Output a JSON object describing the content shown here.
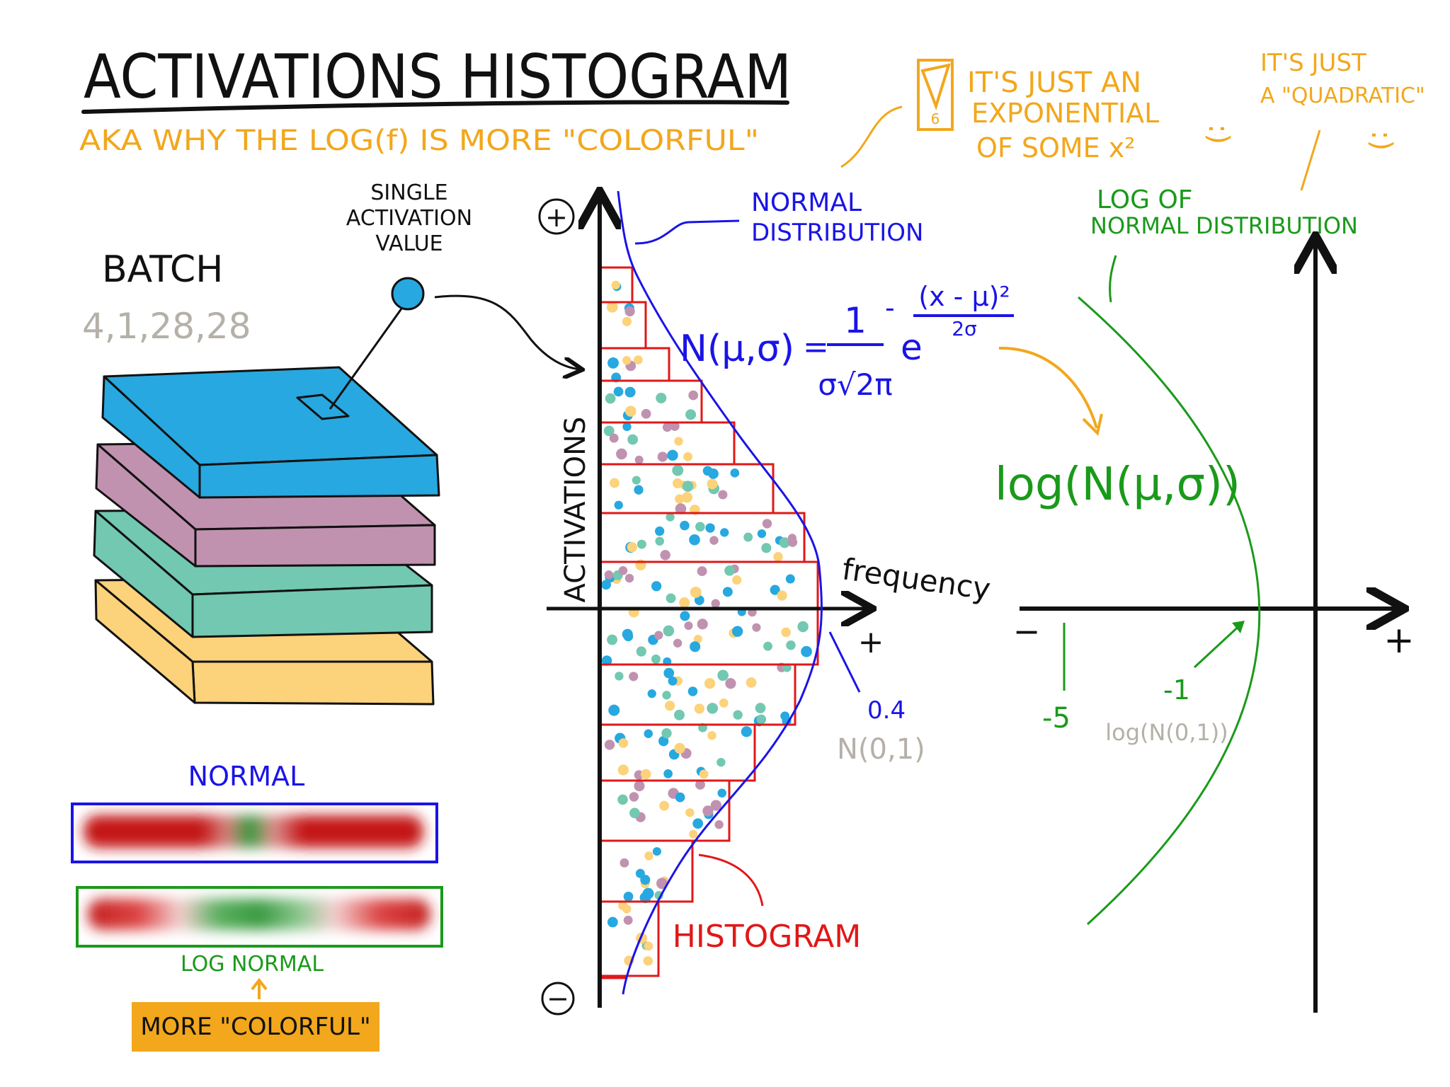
{
  "title": "ACTIVATIONS  HISTOGRAM",
  "subtitle": "AKA  WHY  THE  LOG(f)  IS  MORE  \"COLORFUL\"",
  "batch": {
    "label": "BATCH",
    "shape": "4,1,28,28",
    "layer_colors": [
      "#27a8e0",
      "#c092b0",
      "#72c8b0",
      "#fcd27a"
    ]
  },
  "single_activation": {
    "line1": "SINGLE",
    "line2": "ACTIVATION",
    "line3": "VALUE"
  },
  "histogram": {
    "y_axis_label": "ACTIVATIONS",
    "x_axis_label": "frequency",
    "plus_sign": "+",
    "minus_sign": "−",
    "x_plus": "+",
    "histogram_label": "HISTOGRAM",
    "normal_label_line1": "NORMAL",
    "normal_label_line2": "DISTRIBUTION",
    "peak_value": "0.4",
    "peak_dist": "N(0,1)"
  },
  "formula": {
    "lhs": "N(μ,σ)",
    "equals": "=",
    "numerator": "1",
    "denominator": "σ√2π",
    "base": "e",
    "exp_sign": "-",
    "exp_numerator": "(x - μ)²",
    "exp_denominator": "2σ"
  },
  "log_formula": "log(N(μ,σ))",
  "log_plot": {
    "title_line1": "LOG  OF",
    "title_line2": "NORMAL  DISTRIBUTION",
    "minus": "−",
    "plus": "+",
    "tick_neg5": "-5",
    "tick_neg1": "-1",
    "peak_dist": "log(N(0,1))"
  },
  "notes": {
    "warning_glyph": "!",
    "warning_number": "6",
    "exp_line1": "IT'S  JUST  AN",
    "exp_line2": "EXPONENTIAL",
    "exp_line3": "OF  SOME  x²",
    "quad_line1": "IT'S  JUST",
    "quad_line2": "A \"QUADRATIC\"",
    "smiley": ":)"
  },
  "color_bars": {
    "normal_label": "NORMAL",
    "log_normal_label": "LOG  NORMAL",
    "more_colorful": "MORE \"COLORFUL\""
  },
  "colors": {
    "orange": "#f2a71c",
    "blue": "#1a14e6",
    "green": "#1a9a1a",
    "red": "#e01818",
    "gray": "#b5b0a8"
  }
}
